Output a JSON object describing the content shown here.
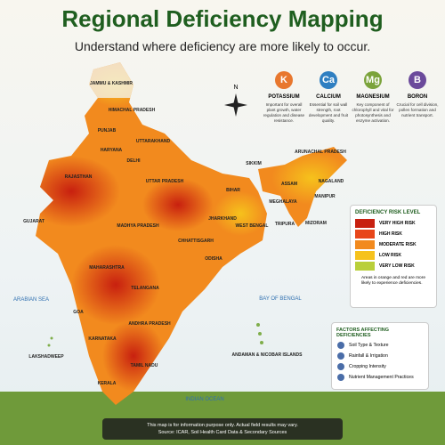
{
  "header": {
    "title": "Regional Deficiency Mapping",
    "subtitle": "Understand where deficiency are more likely to occur."
  },
  "nutrients": [
    {
      "symbol": "K",
      "name": "POTASSIUM",
      "description": "Important for overall plant growth, water regulation and disease resistance.",
      "color": "#e8772e"
    },
    {
      "symbol": "Ca",
      "name": "CALCIUM",
      "description": "Essential for soil wall strength, root development and fruit quality.",
      "color": "#2f7fc1"
    },
    {
      "symbol": "Mg",
      "name": "MAGNESIUM",
      "description": "Key component of chlorophyll and vital for photosynthesis and enzyme activation.",
      "color": "#7ba33b"
    },
    {
      "symbol": "B",
      "name": "BORON",
      "description": "Crucial for cell division, pollen formation and nutrient transport.",
      "color": "#6b4a9b"
    }
  ],
  "compass": "N",
  "states": [
    "JAMMU & KASHMIR",
    "HIMACHAL PRADESH",
    "PUNJAB",
    "UTTARAKHAND",
    "HARYANA",
    "DELHI",
    "RAJASTHAN",
    "UTTAR PRADESH",
    "SIKKIM",
    "ARUNACHAL PRADESH",
    "ASSAM",
    "NAGALAND",
    "MEGHALAYA",
    "MANIPUR",
    "TRIPURA",
    "MIZORAM",
    "BIHAR",
    "JHARKHAND",
    "WEST BENGAL",
    "GUJARAT",
    "MADHYA PRADESH",
    "CHHATTISGARH",
    "ODISHA",
    "MAHARASHTRA",
    "TELANGANA",
    "GOA",
    "ANDHRA PRADESH",
    "KARNATAKA",
    "TAMIL NADU",
    "KERALA",
    "LAKSHADWEEP",
    "ANDAMAN & NICOBAR ISLANDS"
  ],
  "seas": [
    "ARABIAN SEA",
    "BAY OF BENGAL",
    "INDIAN OCEAN"
  ],
  "legend": {
    "title": "DEFICIENCY RISK LEVEL",
    "levels": [
      {
        "label": "VERY HIGH RISK",
        "color": "#c8200f"
      },
      {
        "label": "HIGH RISK",
        "color": "#e8461a"
      },
      {
        "label": "MODERATE RISK",
        "color": "#f28a1e"
      },
      {
        "label": "LOW RISK",
        "color": "#f6c21c"
      },
      {
        "label": "VERY LOW RISK",
        "color": "#b9cf3a"
      }
    ],
    "note": "Areas in orange and red are more likely to experience deficiencies."
  },
  "factors": {
    "title": "FACTORS AFFECTING DEFICIENCIES",
    "items": [
      "Soil Type & Texture",
      "Rainfall & Irrigation",
      "Cropping Intensity",
      "Nutrient Management Practices"
    ]
  },
  "footer": {
    "disclaimer": "This map is for information purpose only. Actual field results may vary.",
    "source": "Source: ICAR, Soil Health Card Data & Secondary Sources"
  }
}
